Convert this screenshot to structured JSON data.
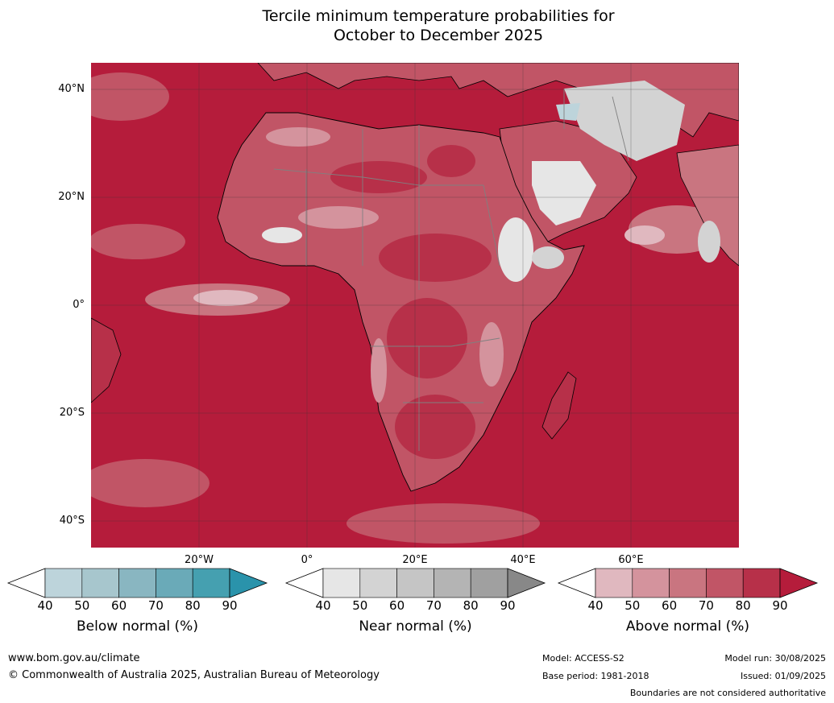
{
  "title": {
    "line1": "Tercile minimum temperature probabilities for",
    "line2": "October to December 2025"
  },
  "map": {
    "region": "Africa",
    "lat_labels": [
      "40°N",
      "20°N",
      "0°",
      "20°S",
      "40°S"
    ],
    "lon_labels": [
      "20°W",
      "0°",
      "20°E",
      "40°E",
      "60°E"
    ],
    "ocean_color": "#b51c3b",
    "land_boundary_color": "#808080",
    "coast_color": "#000000"
  },
  "legends": [
    {
      "title": "Below normal (%)",
      "ticks": [
        "40",
        "50",
        "60",
        "70",
        "80",
        "90"
      ],
      "colors": [
        "#ffffff",
        "#bdd4db",
        "#a7c6cd",
        "#89b6c1",
        "#6aaab8",
        "#45a0b0",
        "#2a93ab"
      ]
    },
    {
      "title": "Near normal (%)",
      "ticks": [
        "40",
        "50",
        "60",
        "70",
        "80",
        "90"
      ],
      "colors": [
        "#ffffff",
        "#e6e6e6",
        "#d3d3d3",
        "#c5c5c5",
        "#b4b4b4",
        "#a0a0a0",
        "#888888"
      ]
    },
    {
      "title": "Above normal (%)",
      "ticks": [
        "40",
        "50",
        "60",
        "70",
        "80",
        "90"
      ],
      "colors": [
        "#ffffff",
        "#e0b8bf",
        "#d4939d",
        "#c97580",
        "#c15566",
        "#b73049",
        "#b51c3b"
      ]
    }
  ],
  "footer": {
    "url": "www.bom.gov.au/climate",
    "copyright": "© Commonwealth of Australia 2025, Australian Bureau of Meteorology",
    "model": "Model: ACCESS-S2",
    "base_period": "Base period: 1981-2018",
    "model_run": "Model run: 30/08/2025",
    "issued": "Issued: 01/09/2025",
    "disclaimer": "Boundaries are not considered authoritative"
  }
}
